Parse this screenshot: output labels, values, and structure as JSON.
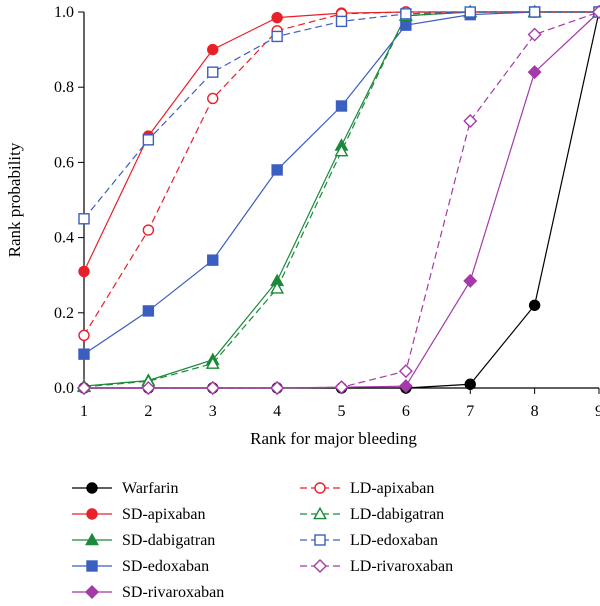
{
  "chart_data": {
    "type": "line",
    "title": "",
    "xlabel": "Rank for major bleeding",
    "ylabel": "Rank probability",
    "x": [
      1,
      2,
      3,
      4,
      5,
      6,
      7,
      8,
      9
    ],
    "xlim": [
      1,
      9
    ],
    "ylim": [
      0,
      1
    ],
    "x_ticks": [
      "1",
      "2",
      "3",
      "4",
      "5",
      "6",
      "7",
      "8",
      "9"
    ],
    "y_ticks": [
      "0.0",
      "0.2",
      "0.4",
      "0.6",
      "0.8",
      "1.0"
    ],
    "grid": false,
    "legend_position": "bottom",
    "series": [
      {
        "name": "Warfarin",
        "values": [
          0,
          0,
          0,
          0,
          0,
          0,
          0.01,
          0.22,
          1.0
        ],
        "color": "#000000",
        "dash": "solid",
        "marker": "circle",
        "filled": true
      },
      {
        "name": "SD-apixaban",
        "values": [
          0.31,
          0.67,
          0.9,
          0.985,
          0.997,
          1.0,
          1.0,
          1.0,
          1.0
        ],
        "color": "#e8202a",
        "dash": "solid",
        "marker": "circle",
        "filled": true
      },
      {
        "name": "SD-dabigatran",
        "values": [
          0.005,
          0.02,
          0.075,
          0.285,
          0.645,
          0.99,
          1.0,
          1.0,
          1.0
        ],
        "color": "#1a8a3a",
        "dash": "solid",
        "marker": "triangle",
        "filled": true
      },
      {
        "name": "SD-edoxaban",
        "values": [
          0.09,
          0.205,
          0.34,
          0.58,
          0.75,
          0.965,
          0.993,
          1.0,
          1.0
        ],
        "color": "#3a5fc0",
        "dash": "solid",
        "marker": "square",
        "filled": true
      },
      {
        "name": "SD-rivaroxaban",
        "values": [
          0,
          0,
          0,
          0,
          0.002,
          0.005,
          0.285,
          0.84,
          1.0
        ],
        "color": "#a43aa8",
        "dash": "solid",
        "marker": "diamond",
        "filled": true
      },
      {
        "name": "LD-apixaban",
        "values": [
          0.14,
          0.42,
          0.77,
          0.95,
          0.995,
          1.0,
          1.0,
          1.0,
          1.0
        ],
        "color": "#e8202a",
        "dash": "dashed",
        "marker": "circle",
        "filled": false
      },
      {
        "name": "LD-dabigatran",
        "values": [
          0.003,
          0.018,
          0.065,
          0.265,
          0.63,
          0.99,
          1.0,
          1.0,
          1.0
        ],
        "color": "#1a8a3a",
        "dash": "dashed",
        "marker": "triangle",
        "filled": false
      },
      {
        "name": "LD-edoxaban",
        "values": [
          0.45,
          0.66,
          0.84,
          0.935,
          0.975,
          0.995,
          1.0,
          1.0,
          1.0
        ],
        "color": "#3a5fc0",
        "dash": "dashed",
        "marker": "square",
        "filled": false
      },
      {
        "name": "LD-rivaroxaban",
        "values": [
          0,
          0,
          0,
          0,
          0.002,
          0.045,
          0.71,
          0.94,
          1.0
        ],
        "color": "#a43aa8",
        "dash": "dashed",
        "marker": "diamond",
        "filled": false
      }
    ]
  }
}
